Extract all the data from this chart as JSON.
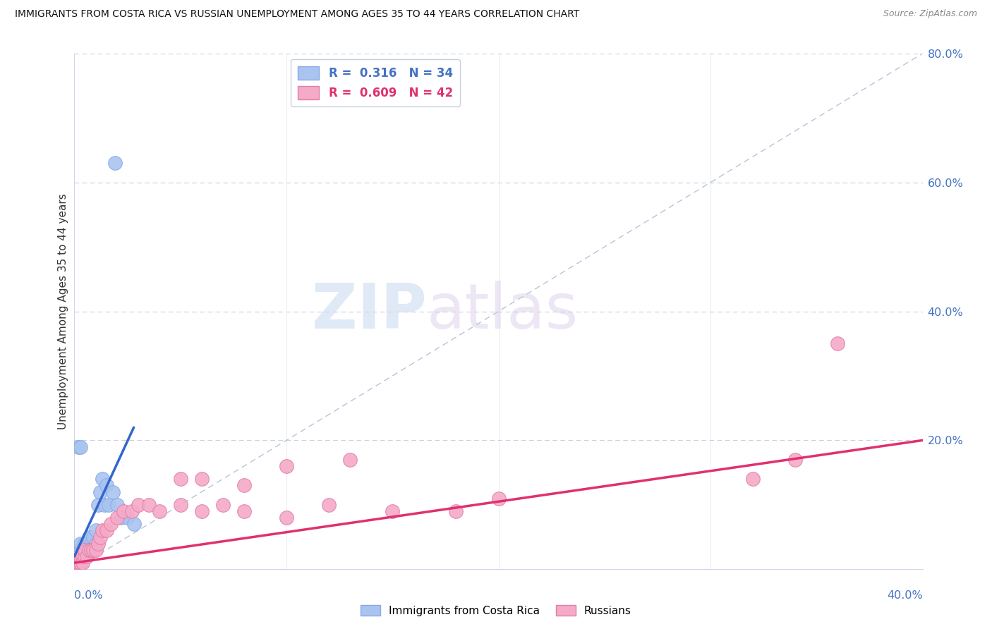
{
  "title": "IMMIGRANTS FROM COSTA RICA VS RUSSIAN UNEMPLOYMENT AMONG AGES 35 TO 44 YEARS CORRELATION CHART",
  "source": "Source: ZipAtlas.com",
  "ylabel": "Unemployment Among Ages 35 to 44 years",
  "watermark_zip": "ZIP",
  "watermark_atlas": "atlas",
  "blue_color": "#aac4f0",
  "pink_color": "#f5aac8",
  "blue_line_color": "#3366cc",
  "pink_line_color": "#e03070",
  "diagonal_color": "#b8c4d8",
  "xlim": [
    0.0,
    0.4
  ],
  "ylim": [
    0.0,
    0.8
  ],
  "right_yticks": [
    0.0,
    0.2,
    0.4,
    0.6,
    0.8
  ],
  "right_yticklabels": [
    "",
    "20.0%",
    "40.0%",
    "60.0%",
    "80.0%"
  ],
  "costa_rica_x": [
    0.001,
    0.002,
    0.002,
    0.002,
    0.003,
    0.003,
    0.003,
    0.004,
    0.004,
    0.005,
    0.005,
    0.006,
    0.006,
    0.007,
    0.007,
    0.008,
    0.008,
    0.009,
    0.01,
    0.01,
    0.011,
    0.012,
    0.013,
    0.014,
    0.015,
    0.016,
    0.018,
    0.02,
    0.022,
    0.025,
    0.028,
    0.002,
    0.003,
    0.019
  ],
  "costa_rica_y": [
    0.02,
    0.01,
    0.02,
    0.03,
    0.02,
    0.03,
    0.04,
    0.02,
    0.03,
    0.02,
    0.04,
    0.02,
    0.03,
    0.03,
    0.05,
    0.03,
    0.04,
    0.05,
    0.04,
    0.06,
    0.1,
    0.12,
    0.14,
    0.1,
    0.13,
    0.1,
    0.12,
    0.1,
    0.08,
    0.08,
    0.07,
    0.19,
    0.19,
    0.63
  ],
  "russians_x": [
    0.001,
    0.002,
    0.002,
    0.003,
    0.003,
    0.004,
    0.004,
    0.005,
    0.005,
    0.006,
    0.007,
    0.008,
    0.009,
    0.01,
    0.011,
    0.012,
    0.013,
    0.015,
    0.017,
    0.02,
    0.023,
    0.027,
    0.03,
    0.035,
    0.04,
    0.05,
    0.06,
    0.07,
    0.08,
    0.1,
    0.12,
    0.15,
    0.18,
    0.2,
    0.05,
    0.06,
    0.08,
    0.1,
    0.13,
    0.32,
    0.34,
    0.36
  ],
  "russians_y": [
    0.01,
    0.02,
    0.01,
    0.01,
    0.02,
    0.02,
    0.01,
    0.02,
    0.03,
    0.02,
    0.03,
    0.03,
    0.03,
    0.03,
    0.04,
    0.05,
    0.06,
    0.06,
    0.07,
    0.08,
    0.09,
    0.09,
    0.1,
    0.1,
    0.09,
    0.1,
    0.09,
    0.1,
    0.09,
    0.08,
    0.1,
    0.09,
    0.09,
    0.11,
    0.14,
    0.14,
    0.13,
    0.16,
    0.17,
    0.14,
    0.17,
    0.35
  ],
  "cr_line_x0": 0.0,
  "cr_line_x1": 0.028,
  "cr_line_y0": 0.02,
  "cr_line_y1": 0.22,
  "ru_line_x0": 0.0,
  "ru_line_x1": 0.4,
  "ru_line_y0": 0.01,
  "ru_line_y1": 0.2
}
